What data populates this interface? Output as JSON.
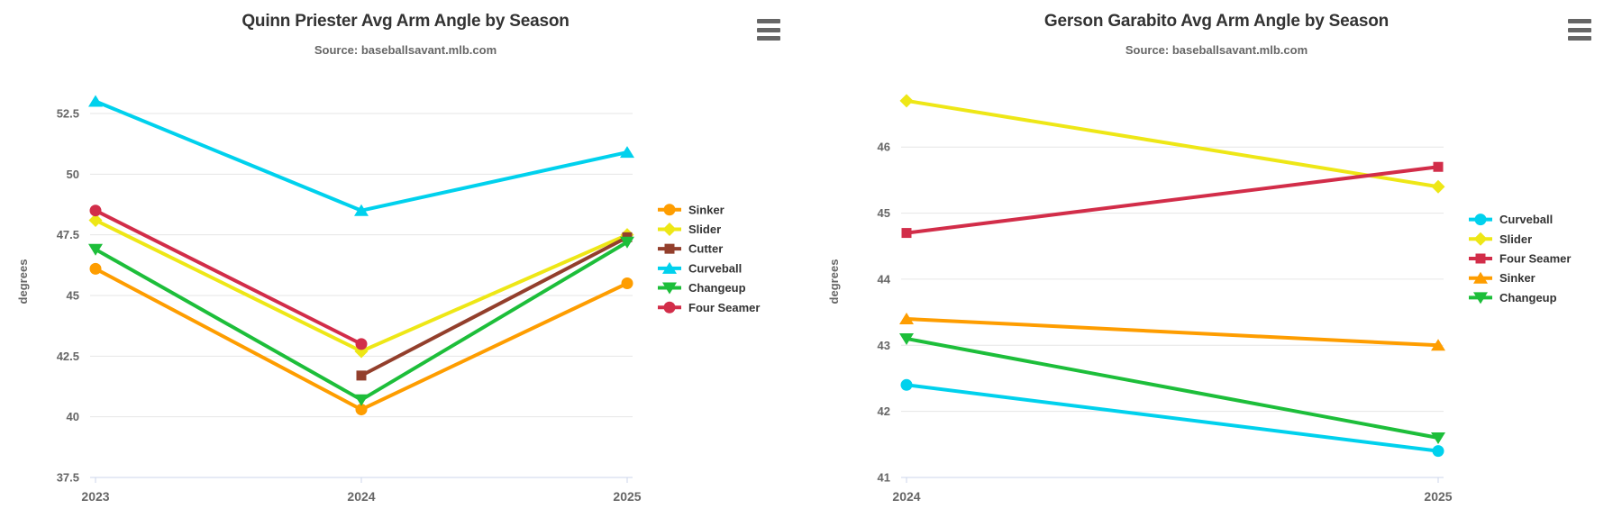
{
  "page": {
    "background": "#ffffff"
  },
  "styles": {
    "grid_color": "#e6e6e6",
    "axis_line_color": "#ccd6eb",
    "title_color": "#333333",
    "subtitle_color": "#666666",
    "label_color": "#666666",
    "legend_text_color": "#333333",
    "menu_icon_color": "#666666"
  },
  "chart_data": [
    {
      "type": "line",
      "title": "Quinn Priester Avg Arm Angle by Season",
      "subtitle": "Source: baseballsavant.mlb.com",
      "ylabel": "degrees",
      "xlabel": "",
      "grid": true,
      "legend_position": "right",
      "categories": [
        "2023",
        "2024",
        "2025"
      ],
      "y_axis": {
        "min": 37.5,
        "max": 53.65,
        "ticks": [
          37.5,
          40,
          42.5,
          45,
          47.5,
          50,
          52.5
        ],
        "tick_labels": [
          "37.5",
          "40",
          "42.5",
          "45",
          "47.5",
          "50",
          "52.5"
        ]
      },
      "series": [
        {
          "name": "Sinker",
          "color": "#FE9D00",
          "marker": "circle",
          "values": [
            46.1,
            40.3,
            45.5
          ]
        },
        {
          "name": "Slider",
          "color": "#EEE716",
          "marker": "diamond",
          "values": [
            48.1,
            42.7,
            47.5
          ]
        },
        {
          "name": "Cutter",
          "color": "#933F2C",
          "marker": "square",
          "values": [
            null,
            41.7,
            47.4
          ]
        },
        {
          "name": "Curveball",
          "color": "#00D1ED",
          "marker": "triangle-up",
          "values": [
            53.0,
            48.5,
            50.9
          ]
        },
        {
          "name": "Changeup",
          "color": "#1DBE3A",
          "marker": "triangle-down",
          "values": [
            46.9,
            40.7,
            47.2
          ]
        },
        {
          "name": "Four Seamer",
          "color": "#D22D49",
          "marker": "circle",
          "values": [
            48.5,
            43.0,
            null
          ]
        }
      ]
    },
    {
      "type": "line",
      "title": "Gerson Garabito Avg Arm Angle by Season",
      "subtitle": "Source: baseballsavant.mlb.com",
      "ylabel": "degrees",
      "xlabel": "",
      "grid": true,
      "legend_position": "right",
      "categories": [
        "2024",
        "2025"
      ],
      "y_axis": {
        "min": 41,
        "max": 46.93,
        "ticks": [
          41,
          42,
          43,
          44,
          45,
          46
        ],
        "tick_labels": [
          "41",
          "42",
          "43",
          "44",
          "45",
          "46"
        ]
      },
      "series": [
        {
          "name": "Curveball",
          "color": "#00D1ED",
          "marker": "circle",
          "values": [
            42.4,
            41.4
          ]
        },
        {
          "name": "Slider",
          "color": "#EEE716",
          "marker": "diamond",
          "values": [
            46.7,
            45.4
          ]
        },
        {
          "name": "Four Seamer",
          "color": "#D22D49",
          "marker": "square",
          "values": [
            44.7,
            45.7
          ]
        },
        {
          "name": "Sinker",
          "color": "#FE9D00",
          "marker": "triangle-up",
          "values": [
            43.4,
            43.0
          ]
        },
        {
          "name": "Changeup",
          "color": "#1DBE3A",
          "marker": "triangle-down",
          "values": [
            43.1,
            41.6
          ]
        }
      ]
    }
  ]
}
